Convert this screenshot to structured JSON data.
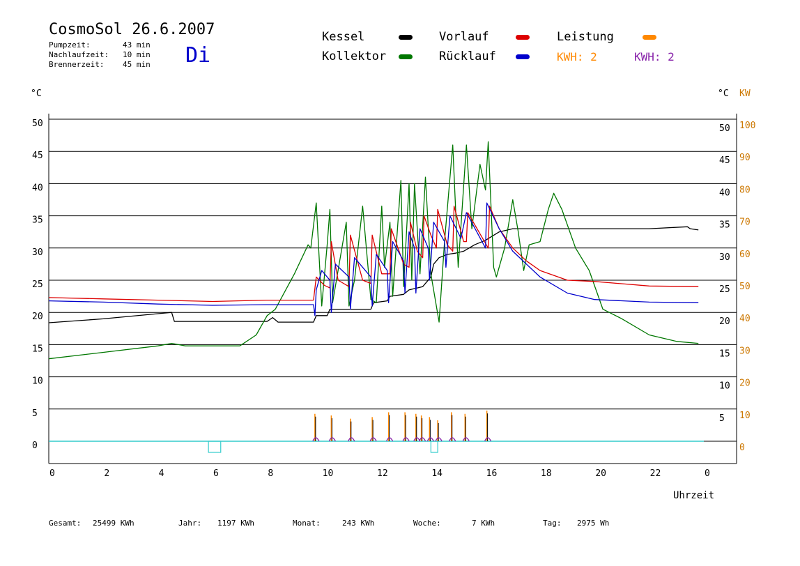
{
  "header": {
    "title": "CosmoSol 26.6.2007",
    "weekday": "Di",
    "info": [
      {
        "label": "Pumpzeit:",
        "value": "43 min"
      },
      {
        "label": "Nachlaufzeit:",
        "value": "10 min"
      },
      {
        "label": "Brennerzeit:",
        "value": "45 min"
      }
    ]
  },
  "legend": {
    "kessel": "Kessel",
    "kollektor": "Kollektor",
    "vorlauf": "Vorlauf",
    "ruecklauf": "Rücklauf",
    "leistung": "Leistung",
    "kwh_orange": "KWH: 2",
    "kwh_purple": "KWH: 2",
    "colors": {
      "kessel": "#000000",
      "kollektor": "#007700",
      "vorlauf": "#dd0000",
      "ruecklauf": "#0000cc",
      "leistung": "#ff8800",
      "purple": "#8822aa",
      "pump": "#33cccc"
    }
  },
  "axes": {
    "left_unit": "°C",
    "right_unit": "°C",
    "right_kw_unit": "KW",
    "xlabel": "Uhrzeit"
  },
  "footer": {
    "gesamt_label": "Gesamt:",
    "gesamt_value": "25499 KWh",
    "jahr_label": "Jahr:",
    "jahr_value": "1197 KWh",
    "monat_label": "Monat:",
    "monat_value": "243 KWh",
    "woche_label": "Woche:",
    "woche_value": "7 KWh",
    "tag_label": "Tag:",
    "tag_value": "2975 Wh"
  },
  "chart_data": {
    "type": "line",
    "title": "CosmoSol 26.6.2007",
    "xlabel": "Uhrzeit",
    "ylabel": "°C",
    "xlim": [
      0,
      24
    ],
    "ylim": [
      0,
      50
    ],
    "y2lim": [
      0,
      100
    ],
    "x_tick_labels": [
      "0",
      "2",
      "4",
      "6",
      "8",
      "10",
      "12",
      "14",
      "16",
      "18",
      "20",
      "22",
      "0"
    ],
    "y_ticks": [
      0,
      5,
      10,
      15,
      20,
      25,
      30,
      35,
      40,
      45,
      50
    ],
    "y2_ticks": [
      0,
      10,
      20,
      30,
      40,
      50,
      60,
      70,
      80,
      90,
      100
    ],
    "grid": true,
    "series": [
      {
        "name": "Kessel",
        "color": "#000000",
        "points": [
          [
            0,
            18.4
          ],
          [
            2,
            19.0
          ],
          [
            4,
            19.8
          ],
          [
            4.5,
            20.0
          ],
          [
            4.6,
            18.6
          ],
          [
            6,
            18.6
          ],
          [
            8,
            18.6
          ],
          [
            8.2,
            19.2
          ],
          [
            8.4,
            18.5
          ],
          [
            9.7,
            18.5
          ],
          [
            9.8,
            19.5
          ],
          [
            10.2,
            19.5
          ],
          [
            10.3,
            20.5
          ],
          [
            11.8,
            20.5
          ],
          [
            11.9,
            21.5
          ],
          [
            12.4,
            21.8
          ],
          [
            12.5,
            22.5
          ],
          [
            13,
            22.8
          ],
          [
            13.2,
            23.5
          ],
          [
            13.7,
            24.0
          ],
          [
            14.0,
            25.5
          ],
          [
            14.1,
            27.5
          ],
          [
            14.3,
            28.5
          ],
          [
            14.6,
            29.0
          ],
          [
            14.9,
            29.2
          ],
          [
            15.2,
            29.5
          ],
          [
            15.6,
            30.5
          ],
          [
            16.0,
            31.2
          ],
          [
            16.5,
            32.5
          ],
          [
            17,
            33.0
          ],
          [
            18,
            33.0
          ],
          [
            22,
            33.0
          ],
          [
            23.4,
            33.3
          ],
          [
            23.5,
            33.0
          ],
          [
            23.8,
            32.8
          ]
        ]
      },
      {
        "name": "Kollektor",
        "color": "#007700",
        "points": [
          [
            0,
            12.8
          ],
          [
            2,
            13.8
          ],
          [
            4,
            14.8
          ],
          [
            4.5,
            15.2
          ],
          [
            5,
            14.8
          ],
          [
            7,
            14.8
          ],
          [
            7.6,
            16.5
          ],
          [
            8,
            19.5
          ],
          [
            8.3,
            20.5
          ],
          [
            9,
            26
          ],
          [
            9.5,
            30.5
          ],
          [
            9.6,
            30.0
          ],
          [
            9.8,
            37.0
          ],
          [
            10.0,
            21.0
          ],
          [
            10.2,
            30.5
          ],
          [
            10.3,
            36.0
          ],
          [
            10.4,
            21.5
          ],
          [
            10.9,
            34.0
          ],
          [
            11.0,
            21.0
          ],
          [
            11.2,
            25.0
          ],
          [
            11.5,
            36.5
          ],
          [
            11.8,
            22.0
          ],
          [
            12.0,
            21.5
          ],
          [
            12.2,
            36.5
          ],
          [
            12.3,
            27
          ],
          [
            12.5,
            34
          ],
          [
            12.6,
            22.5
          ],
          [
            12.9,
            40.5
          ],
          [
            13.0,
            24
          ],
          [
            13.2,
            40.0
          ],
          [
            13.3,
            25
          ],
          [
            13.4,
            40.0
          ],
          [
            13.6,
            26
          ],
          [
            13.8,
            41.0
          ],
          [
            14.0,
            26
          ],
          [
            14.3,
            18.5
          ],
          [
            14.5,
            31
          ],
          [
            14.8,
            46.0
          ],
          [
            15.0,
            27
          ],
          [
            15.3,
            46.0
          ],
          [
            15.5,
            33
          ],
          [
            15.8,
            43.0
          ],
          [
            16.0,
            39.0
          ],
          [
            16.1,
            46.5
          ],
          [
            16.3,
            27
          ],
          [
            16.4,
            25.5
          ],
          [
            16.7,
            30.0
          ],
          [
            17.0,
            37.5
          ],
          [
            17.2,
            32.5
          ],
          [
            17.4,
            26.5
          ],
          [
            17.6,
            30.5
          ],
          [
            18,
            31
          ],
          [
            18.3,
            36
          ],
          [
            18.5,
            38.5
          ],
          [
            18.8,
            36.0
          ],
          [
            19.3,
            30.0
          ],
          [
            19.8,
            26.5
          ],
          [
            20.3,
            20.5
          ],
          [
            21,
            19.0
          ],
          [
            22,
            16.5
          ],
          [
            23,
            15.5
          ],
          [
            23.8,
            15.2
          ]
        ]
      },
      {
        "name": "Vorlauf",
        "color": "#dd0000",
        "points": [
          [
            0,
            22.3
          ],
          [
            2,
            22.1
          ],
          [
            4,
            21.9
          ],
          [
            6,
            21.7
          ],
          [
            8,
            21.9
          ],
          [
            9.7,
            21.9
          ],
          [
            9.8,
            25.5
          ],
          [
            10.1,
            24.2
          ],
          [
            10.3,
            23.8
          ],
          [
            10.35,
            31.0
          ],
          [
            10.6,
            25.0
          ],
          [
            11.0,
            24.0
          ],
          [
            11.05,
            32.0
          ],
          [
            11.5,
            25.0
          ],
          [
            11.8,
            24.5
          ],
          [
            11.85,
            32.0
          ],
          [
            12.2,
            26.0
          ],
          [
            12.5,
            26.0
          ],
          [
            12.55,
            33.0
          ],
          [
            13.0,
            27.5
          ],
          [
            13.2,
            27.0
          ],
          [
            13.25,
            34.0
          ],
          [
            13.5,
            29.5
          ],
          [
            13.7,
            28.5
          ],
          [
            13.75,
            35.0
          ],
          [
            14.0,
            32.0
          ],
          [
            14.2,
            30.0
          ],
          [
            14.25,
            36.0
          ],
          [
            14.6,
            30.5
          ],
          [
            14.8,
            29.5
          ],
          [
            14.85,
            36.5
          ],
          [
            15.2,
            31.0
          ],
          [
            15.3,
            31.0
          ],
          [
            15.35,
            35.5
          ],
          [
            16.1,
            30.0
          ],
          [
            16.15,
            36.5
          ],
          [
            16.5,
            33.0
          ],
          [
            17.0,
            30.0
          ],
          [
            17.5,
            28.0
          ],
          [
            18,
            26.5
          ],
          [
            19,
            25.0
          ],
          [
            20,
            24.8
          ],
          [
            22,
            24.1
          ],
          [
            23.8,
            24.0
          ]
        ]
      },
      {
        "name": "Rücklauf",
        "color": "#0000cc",
        "points": [
          [
            0,
            21.8
          ],
          [
            2,
            21.6
          ],
          [
            4,
            21.3
          ],
          [
            6,
            21.1
          ],
          [
            8,
            21.2
          ],
          [
            9.7,
            21.2
          ],
          [
            9.75,
            19.5
          ],
          [
            9.8,
            23.5
          ],
          [
            10.0,
            26.5
          ],
          [
            10.3,
            25.0
          ],
          [
            10.35,
            20.0
          ],
          [
            10.5,
            27.5
          ],
          [
            11.0,
            25.5
          ],
          [
            11.05,
            20.5
          ],
          [
            11.2,
            28.5
          ],
          [
            11.8,
            25.5
          ],
          [
            11.85,
            21.0
          ],
          [
            12.0,
            29.0
          ],
          [
            12.4,
            26.5
          ],
          [
            12.45,
            21.5
          ],
          [
            12.6,
            31.0
          ],
          [
            13.0,
            28.0
          ],
          [
            13.05,
            23.0
          ],
          [
            13.2,
            32.5
          ],
          [
            13.4,
            30.0
          ],
          [
            13.45,
            23.0
          ],
          [
            13.6,
            33.0
          ],
          [
            13.9,
            30.0
          ],
          [
            13.95,
            25.0
          ],
          [
            14.1,
            34.0
          ],
          [
            14.5,
            31.0
          ],
          [
            14.55,
            27.0
          ],
          [
            14.7,
            35.0
          ],
          [
            15.1,
            31.5
          ],
          [
            15.3,
            35.5
          ],
          [
            16.0,
            30.0
          ],
          [
            16.05,
            37.0
          ],
          [
            16.5,
            33.0
          ],
          [
            17.0,
            29.5
          ],
          [
            18,
            25.5
          ],
          [
            19,
            23.0
          ],
          [
            20,
            22.0
          ],
          [
            22,
            21.6
          ],
          [
            23.8,
            21.5
          ]
        ]
      }
    ],
    "power_spikes": {
      "name": "Leistung",
      "x": [
        9.75,
        10.35,
        11.05,
        11.85,
        12.45,
        13.05,
        13.45,
        13.65,
        13.95,
        14.25,
        14.75,
        15.25,
        16.05
      ],
      "kw": [
        8.5,
        8.0,
        7.0,
        7.5,
        9.0,
        9.0,
        8.5,
        8.0,
        7.5,
        6.5,
        9.0,
        8.5,
        9.5
      ]
    },
    "pump_on_intervals": [
      [
        5.85,
        6.3
      ],
      [
        14.0,
        14.25
      ]
    ]
  }
}
